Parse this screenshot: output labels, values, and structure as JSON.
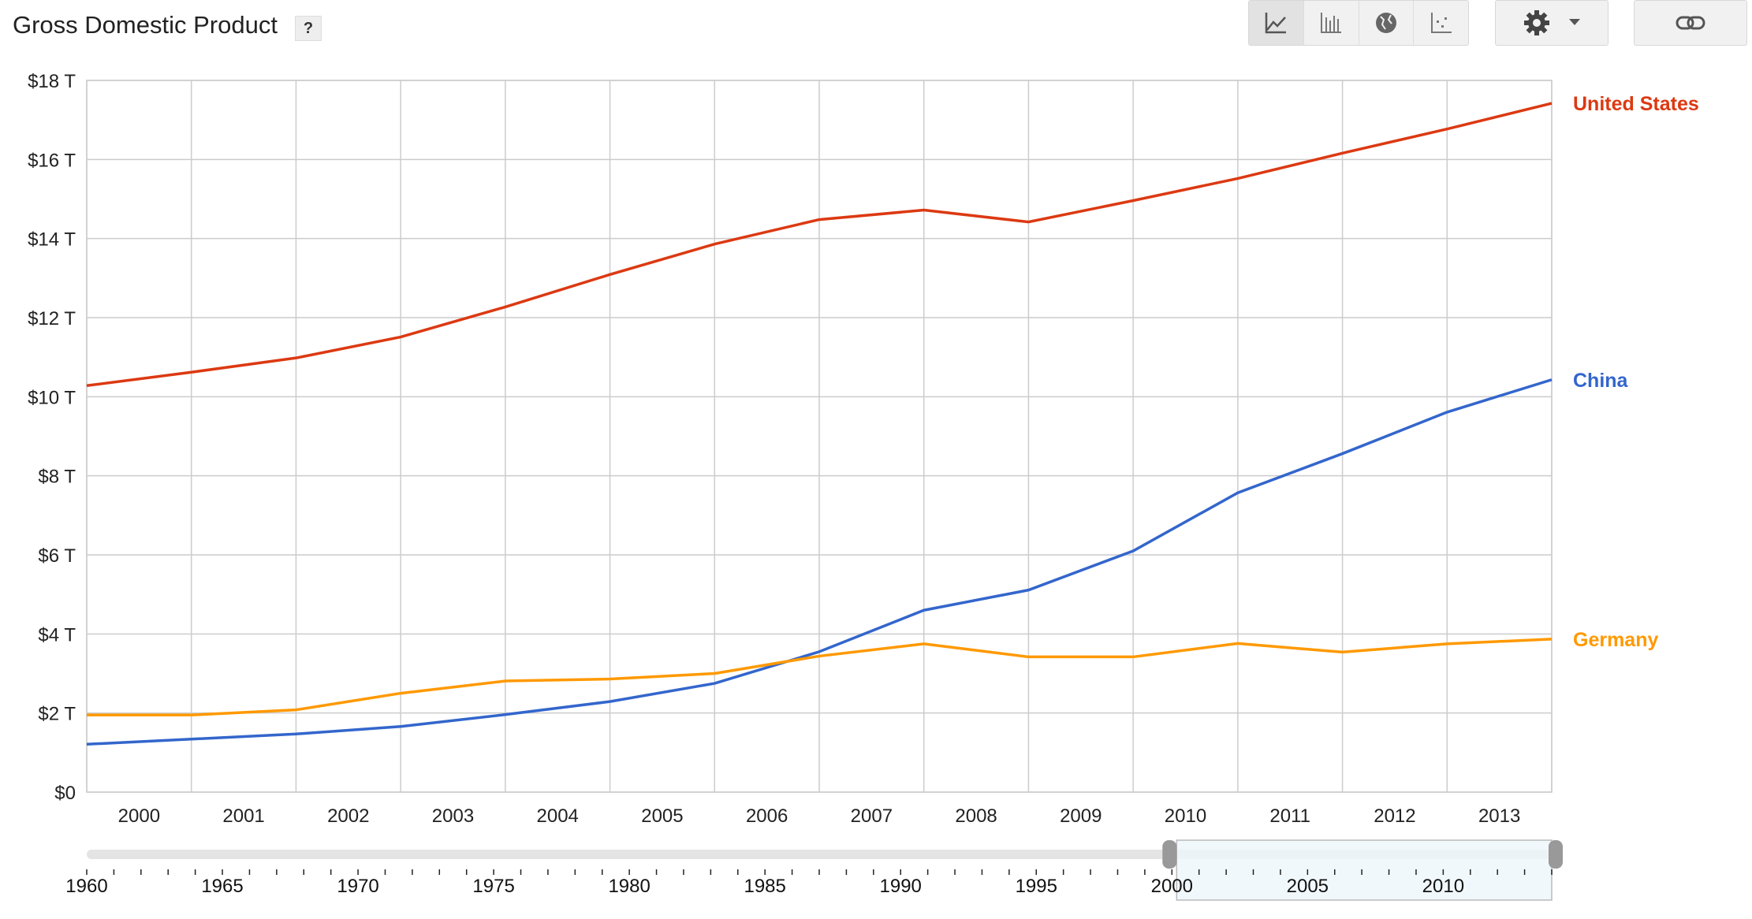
{
  "header": {
    "title": "Gross Domestic Product",
    "help_label": "?"
  },
  "toolbar": {
    "buttons": [
      "line-chart-icon",
      "bar-chart-icon",
      "map-icon",
      "scatter-icon"
    ],
    "settings": "gear-icon",
    "link": "link-icon"
  },
  "chart_data": {
    "type": "line",
    "title": "Gross Domestic Product",
    "ylabel": "",
    "xlabel": "",
    "ylim": [
      0,
      18
    ],
    "yticks": [
      "$0",
      "$2 T",
      "$4 T",
      "$6 T",
      "$8 T",
      "$10 T",
      "$12 T",
      "$14 T",
      "$16 T",
      "$18 T"
    ],
    "x": [
      2000,
      2001,
      2002,
      2003,
      2004,
      2005,
      2006,
      2007,
      2008,
      2009,
      2010,
      2011,
      2012,
      2013,
      2014
    ],
    "xtick_labels": [
      "2000",
      "2001",
      "2002",
      "2003",
      "2004",
      "2005",
      "2006",
      "2007",
      "2008",
      "2009",
      "2010",
      "2011",
      "2012",
      "2013"
    ],
    "grid": true,
    "series": [
      {
        "name": "United States",
        "color": "#dc3912",
        "values": [
          10.28,
          10.62,
          10.98,
          11.51,
          12.27,
          13.09,
          13.86,
          14.48,
          14.72,
          14.42,
          14.96,
          15.52,
          16.16,
          16.77,
          17.42
        ]
      },
      {
        "name": "China",
        "color": "#3366cc",
        "values": [
          1.21,
          1.34,
          1.47,
          1.66,
          1.96,
          2.29,
          2.75,
          3.55,
          4.6,
          5.11,
          6.1,
          7.57,
          8.56,
          9.61,
          10.43
        ]
      },
      {
        "name": "Germany",
        "color": "#ff9900",
        "values": [
          1.95,
          1.95,
          2.08,
          2.5,
          2.81,
          2.86,
          3.0,
          3.44,
          3.75,
          3.42,
          3.42,
          3.76,
          3.54,
          3.75,
          3.87
        ]
      }
    ],
    "legend_placement": "right, at line ends"
  },
  "slider": {
    "labels": [
      "1960",
      "1965",
      "1970",
      "1975",
      "1980",
      "1985",
      "1990",
      "1995",
      "2000",
      "2005",
      "2010"
    ],
    "range": [
      1960,
      2014
    ],
    "selected": [
      2000,
      2014
    ]
  }
}
